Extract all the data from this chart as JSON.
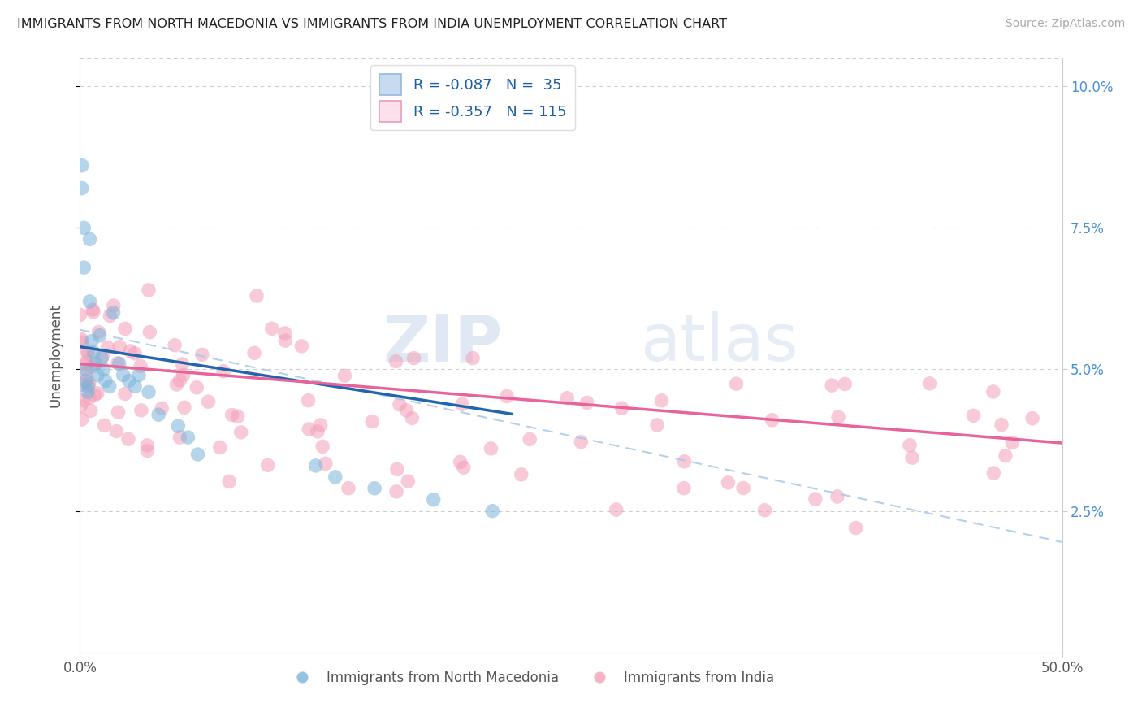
{
  "title": "IMMIGRANTS FROM NORTH MACEDONIA VS IMMIGRANTS FROM INDIA UNEMPLOYMENT CORRELATION CHART",
  "source": "Source: ZipAtlas.com",
  "ylabel": "Unemployment",
  "xlim": [
    0.0,
    0.5
  ],
  "ylim": [
    0.0,
    0.105
  ],
  "yticks": [
    0.025,
    0.05,
    0.075,
    0.1
  ],
  "ytick_labels": [
    "2.5%",
    "5.0%",
    "7.5%",
    "10.0%"
  ],
  "xticks": [
    0.0,
    0.5
  ],
  "xtick_labels": [
    "0.0%",
    "50.0%"
  ],
  "watermark_zip": "ZIP",
  "watermark_atlas": "atlas",
  "legend_r1": "R = -0.087   N =  35",
  "legend_r2": "R = -0.357   N = 115",
  "color_blue": "#7ab4db",
  "color_pink": "#f4a0b8",
  "blue_fill": "#c6dbef",
  "pink_fill": "#fce0ec",
  "legend_text_color": "#333333",
  "legend_val_color": "#1a5ea8",
  "mac_intercept": 0.054,
  "mac_slope": -0.054,
  "ind_intercept": 0.051,
  "ind_slope": -0.028,
  "dash_intercept": 0.057,
  "dash_slope": -0.075,
  "grid_color": "#cccccc",
  "spine_color": "#cccccc",
  "tick_color": "#4a90d9",
  "bottom_label_color": "#555555",
  "source_color": "#aaaaaa"
}
